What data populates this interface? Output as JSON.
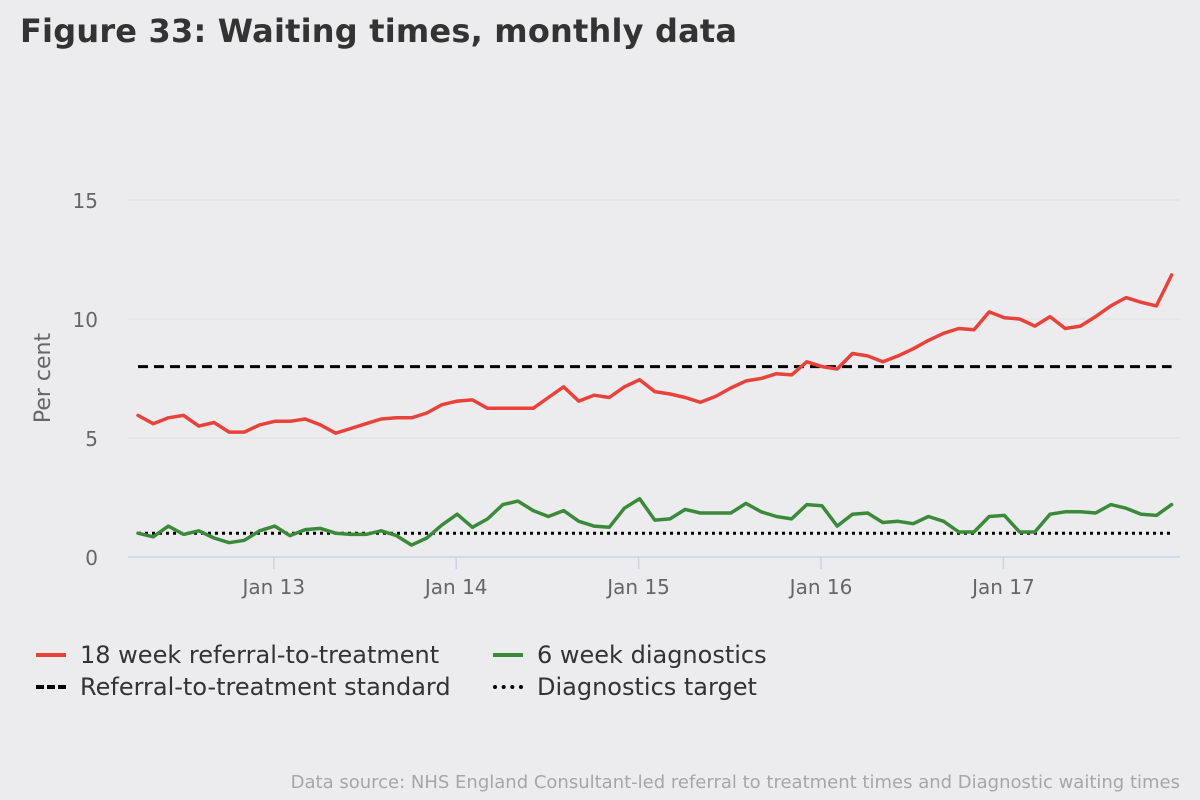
{
  "title": "Figure 33: Waiting times, monthly data",
  "source": "Data source: NHS England Consultant-led referral to treatment times and Diagnostic waiting times",
  "colors": {
    "rtt": "#e8423a",
    "diag": "#3a8a3a",
    "standard": "#000000",
    "grid": "#e0e0e3",
    "axis": "#c7d5e3",
    "tick_text": "#666666"
  },
  "legend": {
    "rtt": "18 week referral-to-treatment",
    "diag": "6 week diagnostics",
    "rtt_standard": "Referral-to-treatment standard",
    "diag_target": "Diagnostics target"
  },
  "chart_data": {
    "type": "line",
    "title": "Figure 33: Waiting times, monthly data",
    "xlabel": "",
    "ylabel": "Per cent",
    "ylim": [
      0,
      15
    ],
    "yticks": [
      0,
      5,
      10,
      15
    ],
    "x_start": "Apr 12",
    "x_count": 69,
    "xticks": [
      {
        "label": "Jan 13",
        "index": 9
      },
      {
        "label": "Jan 14",
        "index": 21
      },
      {
        "label": "Jan 15",
        "index": 33
      },
      {
        "label": "Jan 16",
        "index": 45
      },
      {
        "label": "Jan 17",
        "index": 57
      }
    ],
    "series": [
      {
        "name": "18 week referral-to-treatment",
        "key": "rtt",
        "values": [
          5.95,
          5.6,
          5.85,
          5.95,
          5.5,
          5.65,
          5.25,
          5.25,
          5.55,
          5.7,
          5.7,
          5.8,
          5.55,
          5.2,
          5.4,
          5.6,
          5.8,
          5.85,
          5.85,
          6.05,
          6.4,
          6.55,
          6.6,
          6.25,
          6.25,
          6.25,
          6.25,
          6.7,
          7.15,
          6.55,
          6.8,
          6.7,
          7.15,
          7.45,
          6.95,
          6.85,
          6.7,
          6.5,
          6.75,
          7.1,
          7.4,
          7.5,
          7.7,
          7.65,
          8.2,
          8.0,
          7.9,
          8.55,
          8.45,
          8.2,
          8.45,
          8.75,
          9.1,
          9.4,
          9.6,
          9.55,
          10.3,
          10.05,
          10.0,
          9.7,
          10.1,
          9.6,
          9.7,
          10.1,
          10.55,
          10.9,
          10.7,
          10.55,
          11.85
        ]
      },
      {
        "name": "6 week diagnostics",
        "key": "diag",
        "values": [
          1.0,
          0.85,
          1.3,
          0.95,
          1.1,
          0.8,
          0.6,
          0.7,
          1.1,
          1.3,
          0.9,
          1.15,
          1.2,
          1.0,
          0.95,
          0.95,
          1.1,
          0.9,
          0.5,
          0.8,
          1.35,
          1.8,
          1.25,
          1.6,
          2.2,
          2.35,
          1.95,
          1.7,
          1.95,
          1.5,
          1.3,
          1.25,
          2.05,
          2.45,
          1.55,
          1.6,
          2.0,
          1.85,
          1.85,
          1.85,
          2.25,
          1.9,
          1.7,
          1.6,
          2.2,
          2.15,
          1.3,
          1.8,
          1.85,
          1.45,
          1.5,
          1.4,
          1.7,
          1.5,
          1.05,
          1.05,
          1.7,
          1.75,
          1.05,
          1.05,
          1.8,
          1.9,
          1.9,
          1.85,
          2.2,
          2.05,
          1.8,
          1.75,
          2.2
        ]
      },
      {
        "name": "Referral-to-treatment standard",
        "key": "rtt_standard",
        "values": [
          8
        ]
      },
      {
        "name": "Diagnostics target",
        "key": "diag_target",
        "values": [
          1
        ]
      }
    ]
  }
}
